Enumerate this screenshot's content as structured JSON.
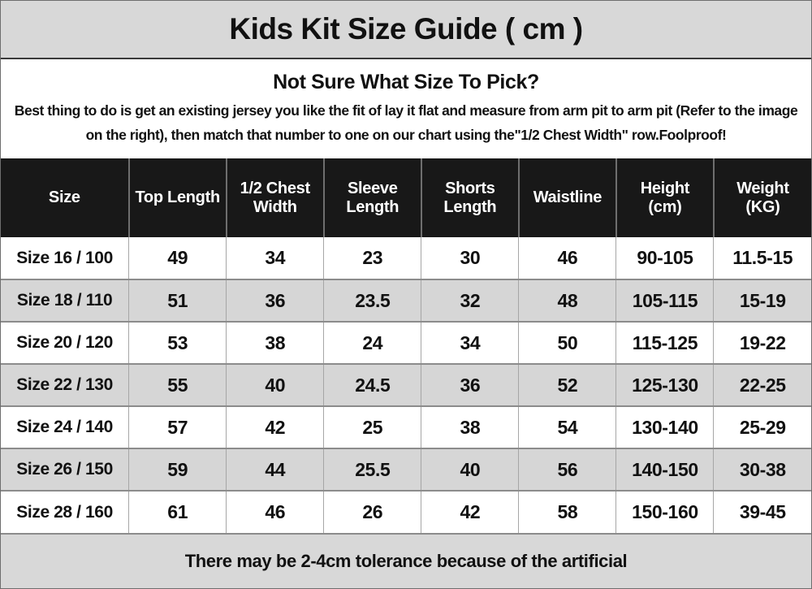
{
  "title": "Kids Kit Size Guide ( cm )",
  "intro": {
    "heading": "Not Sure What Size To Pick?",
    "body": "Best thing to do is get an existing jersey you like the fit of lay it flat and measure from arm pit to arm pit (Refer to the image on the right), then match that number to one on our chart using the\"1/2 Chest Width\" row.Foolproof!"
  },
  "table": {
    "columns": [
      "Size",
      "Top Length",
      "1/2 Chest Width",
      "Sleeve Length",
      "Shorts Length",
      "Waistline",
      "Height (cm)",
      "Weight (KG)"
    ],
    "rows": [
      {
        "cells": [
          "Size 16 / 100",
          "49",
          "34",
          "23",
          "30",
          "46",
          "90-105",
          "11.5-15"
        ]
      },
      {
        "cells": [
          "Size 18 / 110",
          "51",
          "36",
          "23.5",
          "32",
          "48",
          "105-115",
          "15-19"
        ]
      },
      {
        "cells": [
          "Size 20 / 120",
          "53",
          "38",
          "24",
          "34",
          "50",
          "115-125",
          "19-22"
        ]
      },
      {
        "cells": [
          "Size 22 / 130",
          "55",
          "40",
          "24.5",
          "36",
          "52",
          "125-130",
          "22-25"
        ]
      },
      {
        "cells": [
          "Size 24 / 140",
          "57",
          "42",
          "25",
          "38",
          "54",
          "130-140",
          "25-29"
        ]
      },
      {
        "cells": [
          "Size 26 / 150",
          "59",
          "44",
          "25.5",
          "40",
          "56",
          "140-150",
          "30-38"
        ]
      },
      {
        "cells": [
          "Size 28 / 160",
          "61",
          "46",
          "26",
          "42",
          "58",
          "150-160",
          "39-45"
        ]
      }
    ]
  },
  "footer": {
    "note": "There may be 2-4cm tolerance because of the artificial"
  },
  "colors": {
    "band_gray": "#d8d8d8",
    "alt_row_gray": "#d6d6d6",
    "header_black": "#181818",
    "text_black": "#111111",
    "header_text_white": "#ffffff",
    "grid_line": "#8c8c8c"
  }
}
